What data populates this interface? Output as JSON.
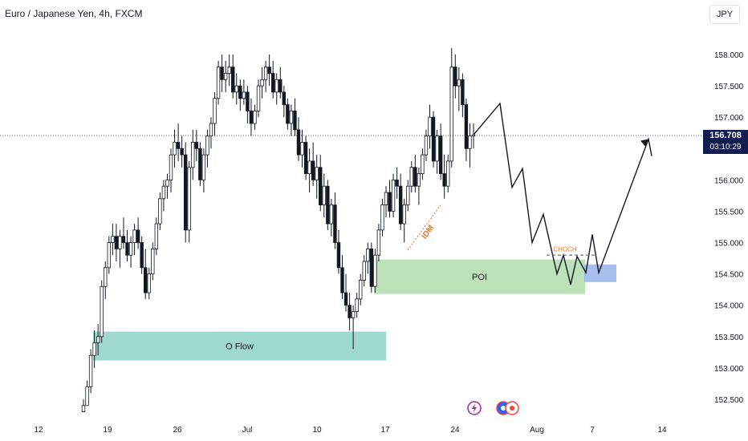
{
  "header": {
    "title": "Euro / Japanese Yen, 4h, FXCM",
    "currency": "JPY"
  },
  "current": {
    "price": 156.708,
    "price_label": "156.708",
    "countdown": "03:10:29"
  },
  "chart_data": {
    "type": "candlestick",
    "ylim": [
      152.3,
      158.6
    ],
    "yticks": [
      "152.500",
      "153.000",
      "153.500",
      "154.000",
      "154.500",
      "155.000",
      "155.500",
      "156.000",
      "156.500",
      "157.000",
      "157.500",
      "158.000"
    ],
    "yvalues": [
      152.5,
      153.0,
      153.5,
      154.0,
      154.5,
      155.0,
      155.5,
      156.0,
      156.5,
      157.0,
      157.5,
      158.0
    ],
    "xticks": [
      "12",
      "19",
      "26",
      "Jul",
      "10",
      "17",
      "24",
      "Aug",
      "7",
      "14"
    ],
    "grid": false,
    "zones": [
      {
        "label": "O Flow",
        "from": 153.12,
        "to": 153.58,
        "color": "#7fcbbf"
      },
      {
        "label": "POI",
        "from": 154.18,
        "to": 154.73,
        "color": "#a7d8a3"
      },
      {
        "label": "",
        "from": 154.37,
        "to": 154.65,
        "color": "#8aa7e6"
      }
    ],
    "annotations": [
      {
        "label": "IDM",
        "color": "#f0782e"
      },
      {
        "label": "CHOCH",
        "color": "#f0782e"
      }
    ],
    "projection": [
      156.72,
      157.22,
      155.88,
      156.18,
      155.0,
      155.45,
      154.5,
      154.8,
      154.33,
      154.78,
      154.52,
      155.13,
      154.52,
      156.65,
      156.38
    ],
    "swing_points": [
      156.72,
      157.22,
      155.88,
      156.18,
      155.0,
      155.45,
      154.5,
      154.8,
      154.33,
      154.78,
      154.52,
      155.13,
      154.52,
      156.65,
      156.38
    ],
    "series": [
      {
        "candles": [
          [
            152.3,
            152.5,
            152.3,
            152.4
          ],
          [
            152.4,
            152.8,
            152.4,
            152.7
          ],
          [
            152.7,
            153.3,
            152.6,
            153.2
          ],
          [
            153.2,
            153.6,
            153.0,
            153.4
          ],
          [
            153.4,
            153.7,
            153.2,
            153.5
          ],
          [
            153.5,
            154.4,
            153.4,
            154.3
          ],
          [
            154.3,
            154.7,
            154.1,
            154.6
          ],
          [
            154.6,
            155.1,
            154.5,
            155.0
          ],
          [
            155.0,
            155.3,
            154.8,
            155.1
          ],
          [
            155.1,
            155.3,
            154.7,
            154.9
          ],
          [
            154.9,
            155.2,
            154.6,
            155.1
          ],
          [
            155.1,
            155.4,
            154.9,
            155.0
          ],
          [
            155.0,
            155.2,
            154.7,
            154.8
          ],
          [
            154.8,
            155.1,
            154.6,
            155.0
          ],
          [
            155.0,
            155.3,
            154.8,
            155.2
          ],
          [
            155.2,
            155.4,
            154.9,
            155.0
          ],
          [
            155.0,
            155.1,
            154.5,
            154.6
          ],
          [
            154.6,
            154.9,
            154.1,
            154.2
          ],
          [
            154.2,
            154.6,
            154.1,
            154.5
          ],
          [
            154.5,
            155.0,
            154.4,
            154.9
          ],
          [
            154.9,
            155.4,
            154.8,
            155.3
          ],
          [
            155.3,
            155.8,
            155.2,
            155.7
          ],
          [
            155.7,
            156.0,
            155.5,
            155.9
          ],
          [
            155.9,
            156.1,
            155.7,
            156.0
          ],
          [
            156.0,
            156.5,
            155.8,
            156.4
          ],
          [
            156.4,
            156.8,
            156.2,
            156.6
          ],
          [
            156.6,
            156.9,
            156.3,
            156.5
          ],
          [
            156.5,
            156.7,
            156.2,
            156.4
          ],
          [
            156.4,
            156.6,
            155.0,
            155.2
          ],
          [
            155.2,
            156.3,
            155.0,
            156.2
          ],
          [
            156.2,
            156.8,
            156.0,
            156.6
          ],
          [
            156.6,
            156.8,
            156.3,
            156.5
          ],
          [
            156.5,
            156.6,
            155.9,
            156.0
          ],
          [
            156.0,
            156.5,
            155.8,
            156.4
          ],
          [
            156.4,
            156.8,
            156.2,
            156.7
          ],
          [
            156.7,
            157.0,
            156.5,
            156.9
          ],
          [
            156.9,
            157.4,
            156.7,
            157.3
          ],
          [
            157.3,
            157.9,
            157.2,
            157.8
          ],
          [
            157.8,
            158.0,
            157.4,
            157.6
          ],
          [
            157.6,
            157.9,
            157.4,
            157.7
          ],
          [
            157.7,
            158.0,
            157.5,
            157.8
          ],
          [
            157.8,
            158.0,
            157.3,
            157.4
          ],
          [
            157.4,
            157.7,
            157.2,
            157.5
          ],
          [
            157.5,
            157.6,
            157.1,
            157.3
          ],
          [
            157.3,
            157.6,
            157.2,
            157.4
          ],
          [
            157.4,
            157.5,
            156.9,
            157.1
          ],
          [
            157.1,
            157.3,
            156.7,
            156.9
          ],
          [
            156.9,
            157.2,
            156.8,
            157.1
          ],
          [
            157.1,
            157.6,
            157.0,
            157.5
          ],
          [
            157.5,
            157.8,
            157.3,
            157.6
          ],
          [
            157.6,
            157.9,
            157.4,
            157.8
          ],
          [
            157.8,
            158.0,
            157.5,
            157.7
          ],
          [
            157.7,
            157.9,
            157.3,
            157.4
          ],
          [
            157.4,
            157.7,
            157.2,
            157.6
          ],
          [
            157.6,
            157.8,
            157.3,
            157.4
          ],
          [
            157.4,
            157.5,
            157.0,
            157.2
          ],
          [
            157.2,
            157.3,
            156.8,
            156.9
          ],
          [
            156.9,
            157.2,
            156.7,
            157.1
          ],
          [
            157.1,
            157.3,
            156.7,
            156.8
          ],
          [
            156.8,
            157.0,
            156.3,
            156.4
          ],
          [
            156.4,
            156.8,
            156.2,
            156.6
          ],
          [
            156.6,
            156.7,
            156.0,
            156.1
          ],
          [
            156.1,
            156.5,
            155.8,
            156.3
          ],
          [
            156.3,
            156.6,
            155.9,
            156.0
          ],
          [
            156.0,
            156.4,
            155.7,
            156.2
          ],
          [
            156.2,
            156.4,
            155.5,
            155.6
          ],
          [
            155.6,
            156.1,
            155.4,
            155.9
          ],
          [
            155.9,
            156.0,
            155.2,
            155.3
          ],
          [
            155.3,
            155.7,
            155.1,
            155.6
          ],
          [
            155.6,
            155.8,
            154.9,
            155.0
          ],
          [
            155.0,
            155.2,
            154.5,
            154.6
          ],
          [
            154.6,
            154.8,
            154.1,
            154.2
          ],
          [
            154.2,
            154.5,
            153.9,
            154.0
          ],
          [
            154.0,
            154.2,
            153.6,
            153.8
          ],
          [
            153.8,
            154.0,
            153.3,
            153.9
          ],
          [
            153.9,
            154.2,
            153.8,
            154.1
          ],
          [
            154.1,
            154.5,
            154.0,
            154.4
          ],
          [
            154.4,
            154.8,
            154.3,
            154.7
          ],
          [
            154.7,
            155.0,
            154.5,
            154.9
          ],
          [
            154.9,
            155.0,
            154.2,
            154.3
          ],
          [
            154.3,
            154.9,
            154.2,
            154.8
          ],
          [
            154.8,
            155.3,
            154.7,
            155.2
          ],
          [
            155.2,
            155.7,
            155.1,
            155.6
          ],
          [
            155.6,
            155.9,
            155.4,
            155.8
          ],
          [
            155.8,
            156.0,
            155.4,
            155.5
          ],
          [
            155.5,
            156.1,
            155.4,
            156.0
          ],
          [
            156.0,
            156.2,
            155.7,
            155.9
          ],
          [
            155.9,
            156.1,
            155.2,
            155.3
          ],
          [
            155.3,
            155.7,
            155.0,
            155.6
          ],
          [
            155.6,
            156.0,
            155.5,
            155.9
          ],
          [
            155.9,
            156.3,
            155.8,
            156.2
          ],
          [
            156.2,
            156.4,
            155.8,
            155.9
          ],
          [
            155.9,
            156.2,
            155.6,
            156.1
          ],
          [
            156.1,
            156.5,
            156.0,
            156.4
          ],
          [
            156.4,
            156.8,
            156.3,
            156.7
          ],
          [
            156.7,
            157.2,
            156.5,
            157.0
          ],
          [
            157.0,
            157.1,
            156.2,
            156.3
          ],
          [
            156.3,
            156.8,
            156.1,
            156.7
          ],
          [
            156.7,
            156.9,
            156.0,
            156.1
          ],
          [
            156.1,
            156.4,
            155.7,
            155.9
          ],
          [
            155.9,
            156.4,
            155.8,
            156.3
          ],
          [
            156.3,
            158.1,
            156.2,
            157.8
          ],
          [
            157.8,
            158.0,
            157.3,
            157.5
          ],
          [
            157.5,
            157.8,
            157.1,
            157.6
          ],
          [
            157.6,
            157.7,
            157.0,
            157.2
          ],
          [
            157.2,
            157.3,
            156.3,
            156.5
          ],
          [
            156.5,
            156.9,
            156.2,
            156.7
          ],
          [
            156.7,
            156.9,
            156.5,
            156.72
          ]
        ]
      }
    ]
  }
}
